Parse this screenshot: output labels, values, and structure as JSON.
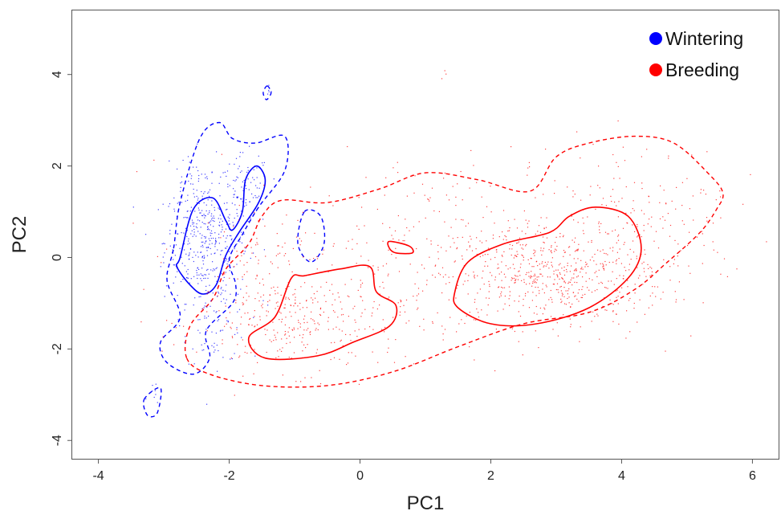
{
  "chart_data": {
    "type": "scatter",
    "title": "",
    "xlabel": "PC1",
    "ylabel": "PC2",
    "xlim": [
      -4.4,
      6.4
    ],
    "ylim": [
      -4.4,
      5.4
    ],
    "x_ticks": [
      -4,
      -2,
      0,
      2,
      4,
      6
    ],
    "y_ticks": [
      -4,
      -2,
      0,
      2,
      4
    ],
    "x_tick_labels": [
      "-4",
      "-2",
      "0",
      "2",
      "4",
      "6"
    ],
    "y_tick_labels": [
      "-4",
      "-2",
      "0",
      "2",
      "4"
    ],
    "grid": false,
    "legend_position": "top-right",
    "series": [
      {
        "name": "Wintering",
        "color": "#0000ff",
        "point_clusters": [
          {
            "center": [
              -2.35,
              0.35
            ],
            "spread": [
              0.32,
              0.65
            ],
            "count": 380
          },
          {
            "center": [
              -1.75,
              1.45
            ],
            "spread": [
              0.18,
              0.4
            ],
            "count": 90
          },
          {
            "center": [
              -2.2,
              -1.4
            ],
            "spread": [
              0.25,
              0.45
            ],
            "count": 70
          },
          {
            "center": [
              -2.6,
              1.6
            ],
            "spread": [
              0.2,
              0.35
            ],
            "count": 40
          },
          {
            "center": [
              -1.4,
              3.6
            ],
            "spread": [
              0.03,
              0.1
            ],
            "count": 6
          },
          {
            "center": [
              -3.15,
              -3.1
            ],
            "spread": [
              0.06,
              0.2
            ],
            "count": 8
          }
        ],
        "contours": {
          "solid": [
            [
              [
                -2.75,
                0.0
              ],
              [
                -2.55,
                1.05
              ],
              [
                -2.25,
                1.3
              ],
              [
                -2.05,
                0.8
              ],
              [
                -1.95,
                0.6
              ],
              [
                -1.8,
                1.0
              ],
              [
                -1.75,
                1.7
              ],
              [
                -1.58,
                2.0
              ],
              [
                -1.45,
                1.7
              ],
              [
                -1.55,
                1.2
              ],
              [
                -1.85,
                0.55
              ],
              [
                -2.05,
                0.05
              ],
              [
                -2.2,
                -0.6
              ],
              [
                -2.4,
                -0.8
              ],
              [
                -2.6,
                -0.6
              ],
              [
                -2.8,
                -0.2
              ]
            ]
          ],
          "dashed": [
            [
              [
                -2.85,
                0.2
              ],
              [
                -2.75,
                1.2
              ],
              [
                -2.45,
                2.6
              ],
              [
                -2.15,
                2.95
              ],
              [
                -1.95,
                2.6
              ],
              [
                -1.6,
                2.5
              ],
              [
                -1.15,
                2.65
              ],
              [
                -1.15,
                1.9
              ],
              [
                -1.55,
                1.1
              ],
              [
                -1.8,
                0.5
              ],
              [
                -2.0,
                -0.05
              ],
              [
                -1.9,
                -0.6
              ],
              [
                -1.95,
                -1.0
              ],
              [
                -2.35,
                -1.6
              ],
              [
                -2.3,
                -2.2
              ],
              [
                -2.55,
                -2.55
              ],
              [
                -2.95,
                -2.3
              ],
              [
                -3.05,
                -1.85
              ],
              [
                -2.75,
                -1.3
              ],
              [
                -2.95,
                -0.5
              ]
            ],
            [
              [
                -0.85,
                1.0
              ],
              [
                -0.6,
                0.9
              ],
              [
                -0.55,
                0.3
              ],
              [
                -0.75,
                -0.1
              ],
              [
                -0.95,
                0.3
              ]
            ],
            [
              [
                -1.42,
                3.75
              ],
              [
                -1.36,
                3.6
              ],
              [
                -1.43,
                3.45
              ],
              [
                -1.48,
                3.6
              ]
            ],
            [
              [
                -3.3,
                -3.1
              ],
              [
                -3.05,
                -2.85
              ],
              [
                -3.1,
                -3.4
              ],
              [
                -3.25,
                -3.45
              ]
            ]
          ]
        }
      },
      {
        "name": "Breeding",
        "color": "#ff0000",
        "point_clusters": [
          {
            "center": [
              2.9,
              -0.4
            ],
            "spread": [
              0.9,
              0.55
            ],
            "count": 520
          },
          {
            "center": [
              -0.9,
              -1.4
            ],
            "spread": [
              0.8,
              0.55
            ],
            "count": 320
          },
          {
            "center": [
              1.5,
              0.2
            ],
            "spread": [
              1.9,
              1.05
            ],
            "count": 380
          },
          {
            "center": [
              4.3,
              1.0
            ],
            "spread": [
              0.7,
              0.8
            ],
            "count": 120
          },
          {
            "center": [
              -1.5,
              0.0
            ],
            "spread": [
              0.3,
              0.6
            ],
            "count": 40
          },
          {
            "center": [
              1.3,
              4.0
            ],
            "spread": [
              0.05,
              0.05
            ],
            "count": 3
          }
        ],
        "contours": {
          "solid": [
            [
              [
                -1.3,
                -1.3
              ],
              [
                -1.05,
                -0.45
              ],
              [
                -0.85,
                -0.4
              ],
              [
                -0.3,
                -0.25
              ],
              [
                0.15,
                -0.2
              ],
              [
                0.25,
                -0.75
              ],
              [
                0.55,
                -1.05
              ],
              [
                0.45,
                -1.5
              ],
              [
                -0.1,
                -1.85
              ],
              [
                -0.65,
                -2.15
              ],
              [
                -1.45,
                -2.2
              ],
              [
                -1.7,
                -1.75
              ]
            ],
            [
              [
                1.45,
                -0.75
              ],
              [
                1.65,
                -0.1
              ],
              [
                2.2,
                0.3
              ],
              [
                2.9,
                0.55
              ],
              [
                3.2,
                0.9
              ],
              [
                3.6,
                1.1
              ],
              [
                4.1,
                0.9
              ],
              [
                4.3,
                0.2
              ],
              [
                4.1,
                -0.45
              ],
              [
                3.5,
                -1.1
              ],
              [
                2.7,
                -1.45
              ],
              [
                2.0,
                -1.45
              ],
              [
                1.5,
                -1.1
              ]
            ],
            [
              [
                0.45,
                0.35
              ],
              [
                0.75,
                0.25
              ],
              [
                0.8,
                0.1
              ],
              [
                0.55,
                0.1
              ],
              [
                0.45,
                0.2
              ]
            ]
          ],
          "dashed": [
            [
              [
                -2.65,
                -2.2
              ],
              [
                -2.6,
                -1.5
              ],
              [
                -2.25,
                -0.9
              ],
              [
                -2.05,
                -0.25
              ],
              [
                -1.7,
                0.3
              ],
              [
                -1.5,
                0.9
              ],
              [
                -1.2,
                1.25
              ],
              [
                -0.5,
                1.2
              ],
              [
                0.3,
                1.5
              ],
              [
                1.0,
                1.85
              ],
              [
                1.8,
                1.7
              ],
              [
                2.6,
                1.45
              ],
              [
                3.0,
                2.2
              ],
              [
                3.5,
                2.5
              ],
              [
                4.2,
                2.65
              ],
              [
                4.8,
                2.5
              ],
              [
                5.35,
                1.8
              ],
              [
                5.55,
                1.4
              ],
              [
                5.45,
                1.05
              ],
              [
                5.2,
                0.55
              ],
              [
                4.7,
                -0.1
              ],
              [
                4.2,
                -0.7
              ],
              [
                3.5,
                -1.2
              ],
              [
                2.5,
                -1.45
              ],
              [
                1.5,
                -1.95
              ],
              [
                0.5,
                -2.5
              ],
              [
                -0.5,
                -2.8
              ],
              [
                -1.5,
                -2.8
              ],
              [
                -2.3,
                -2.55
              ]
            ]
          ]
        }
      }
    ]
  }
}
